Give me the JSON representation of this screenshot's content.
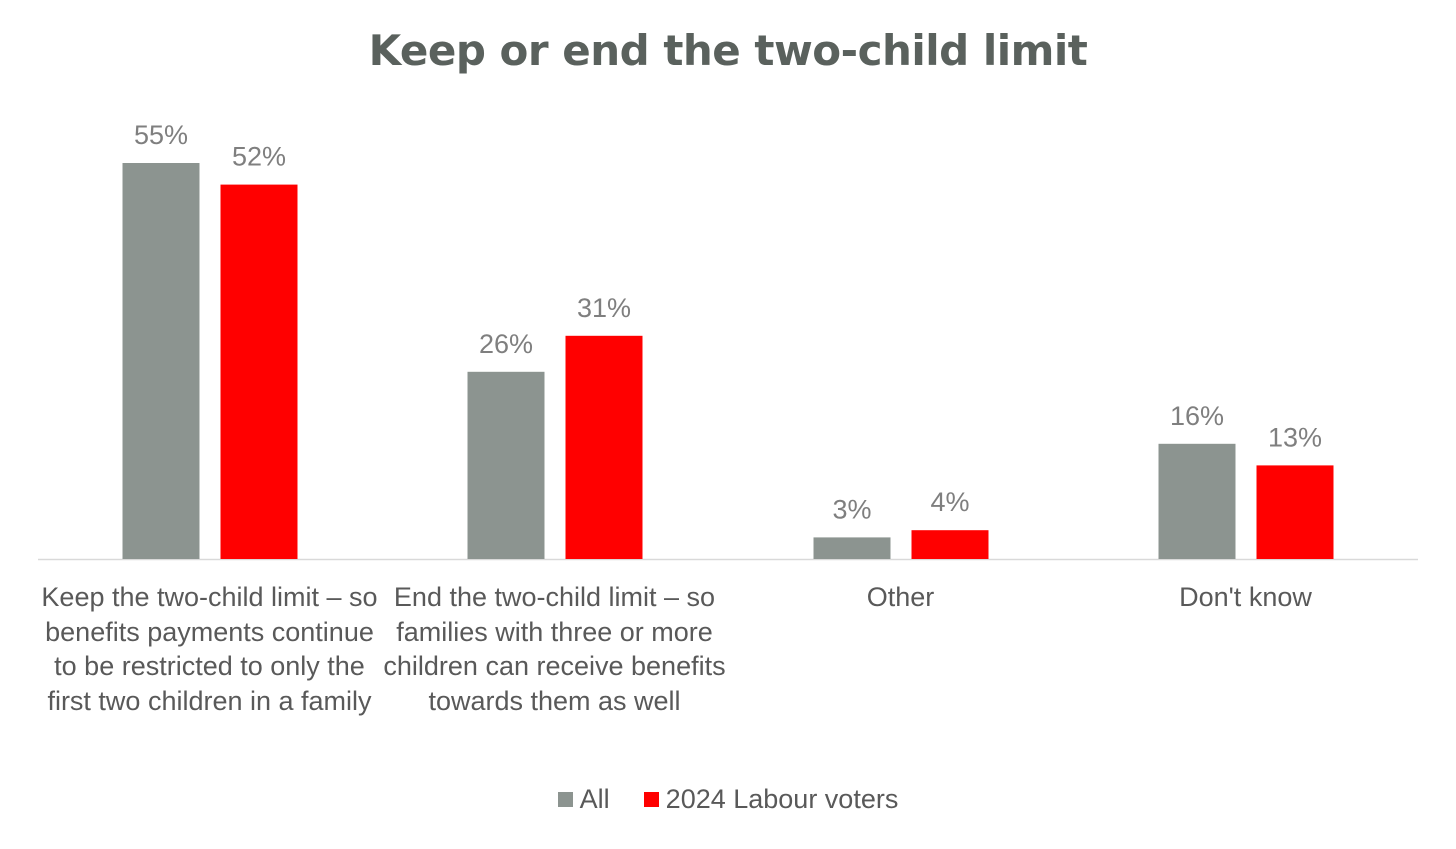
{
  "chart_data": {
    "type": "bar",
    "title": "Keep or end the two-child limit",
    "categories": [
      "Keep the two-child limit – so benefits payments continue to be restricted to only the first two children in a family",
      "End the two-child limit – so families with three or more children can receive benefits towards them as well",
      "Other",
      "Don't know"
    ],
    "series": [
      {
        "name": "All",
        "color": "#8c9490",
        "values": [
          55,
          26,
          3,
          16
        ],
        "labels": [
          "55%",
          "26%",
          "3%",
          "16%"
        ]
      },
      {
        "name": "2024 Labour voters",
        "color": "#ff0000",
        "values": [
          52,
          31,
          4,
          13
        ],
        "labels": [
          "52%",
          "31%",
          "4%",
          "13%"
        ]
      }
    ],
    "ylim": [
      0,
      55
    ],
    "xlabel": "",
    "ylabel": "",
    "grid": false,
    "legend_position": "bottom"
  }
}
